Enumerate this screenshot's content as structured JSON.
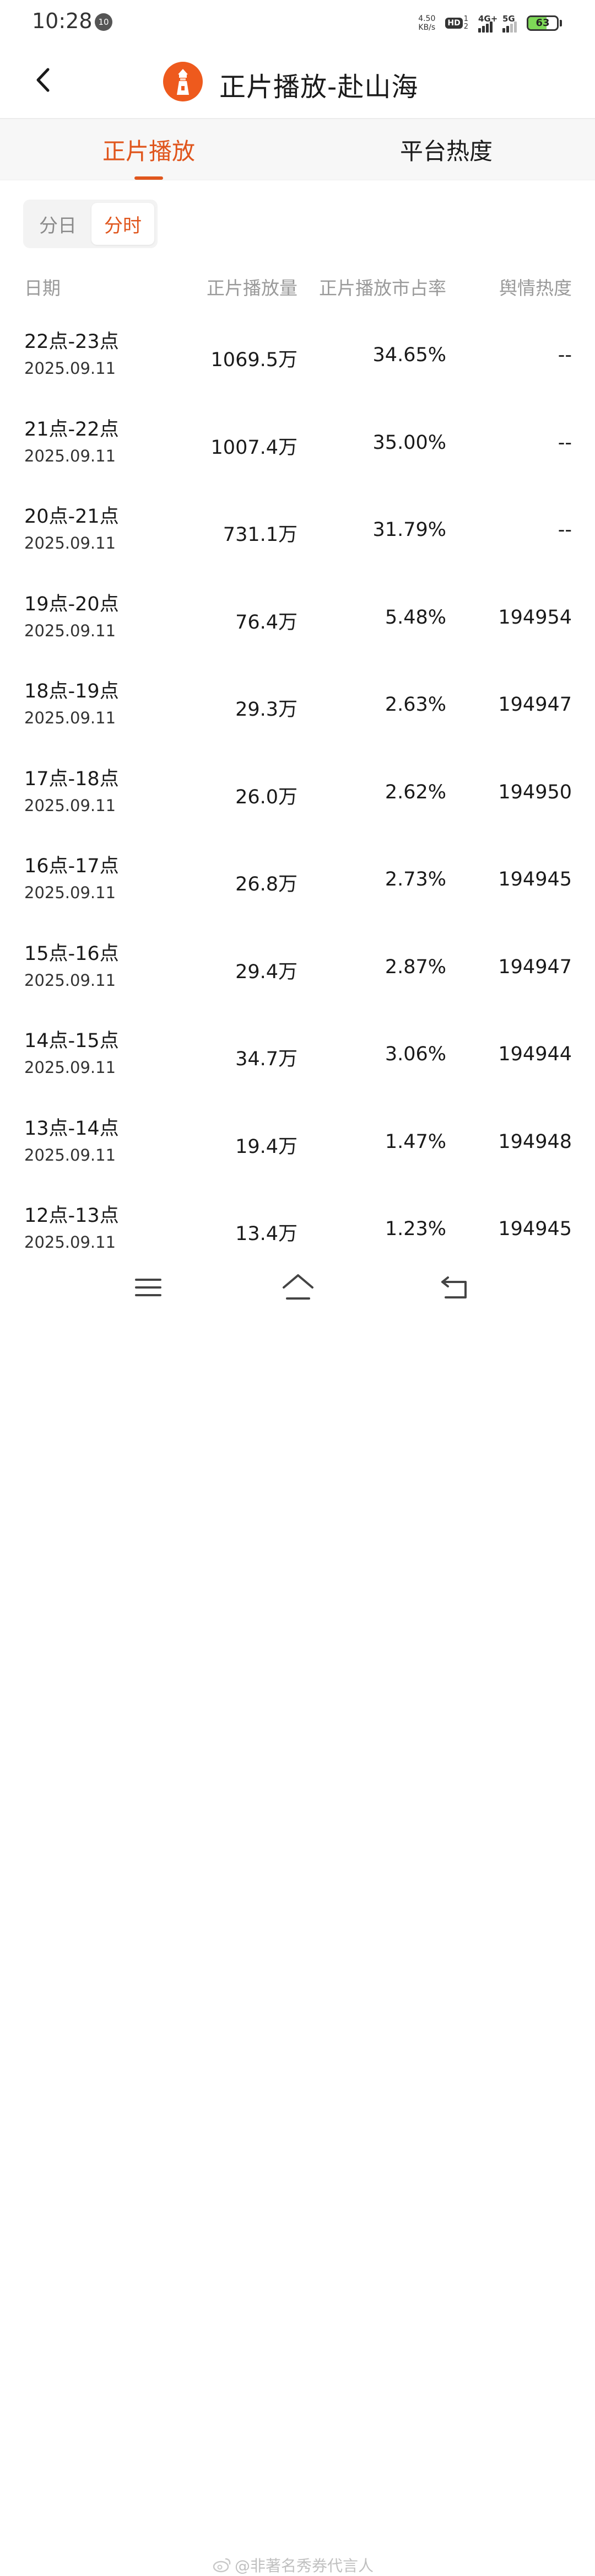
{
  "status_bar": {
    "time": "10:28",
    "notification_badge": "10",
    "net_speed_value": "4.50",
    "net_speed_unit": "KB/s",
    "hd_label": "HD",
    "hd_sim1": "1",
    "hd_sim2": "2",
    "signal1_label": "4G+",
    "signal2_label": "5G",
    "battery_level": "63",
    "battery_fraction": 0.63
  },
  "header": {
    "title": "正片播放-赴山海",
    "back_icon": "chevron-left-icon",
    "logo_icon": "lighthouse-logo-icon",
    "accent_color": "#e0561d"
  },
  "tabs": [
    {
      "label": "正片播放",
      "active": true
    },
    {
      "label": "平台热度",
      "active": false
    }
  ],
  "segmented": {
    "day_label": "分日",
    "hour_label": "分时",
    "selected": "分时"
  },
  "table": {
    "headers": [
      "日期",
      "正片播放量",
      "正片播放市占率",
      "舆情热度"
    ],
    "rows": [
      {
        "hour": "22点-23点",
        "date": "2025.09.11",
        "plays": "1069.5万",
        "share": "34.65%",
        "heat": "--"
      },
      {
        "hour": "21点-22点",
        "date": "2025.09.11",
        "plays": "1007.4万",
        "share": "35.00%",
        "heat": "--"
      },
      {
        "hour": "20点-21点",
        "date": "2025.09.11",
        "plays": "731.1万",
        "share": "31.79%",
        "heat": "--"
      },
      {
        "hour": "19点-20点",
        "date": "2025.09.11",
        "plays": "76.4万",
        "share": "5.48%",
        "heat": "194954"
      },
      {
        "hour": "18点-19点",
        "date": "2025.09.11",
        "plays": "29.3万",
        "share": "2.63%",
        "heat": "194947"
      },
      {
        "hour": "17点-18点",
        "date": "2025.09.11",
        "plays": "26.0万",
        "share": "2.62%",
        "heat": "194950"
      },
      {
        "hour": "16点-17点",
        "date": "2025.09.11",
        "plays": "26.8万",
        "share": "2.73%",
        "heat": "194945"
      },
      {
        "hour": "15点-16点",
        "date": "2025.09.11",
        "plays": "29.4万",
        "share": "2.87%",
        "heat": "194947"
      },
      {
        "hour": "14点-15点",
        "date": "2025.09.11",
        "plays": "34.7万",
        "share": "3.06%",
        "heat": "194944"
      },
      {
        "hour": "13点-14点",
        "date": "2025.09.11",
        "plays": "19.4万",
        "share": "1.47%",
        "heat": "194948"
      },
      {
        "hour": "12点-13点",
        "date": "2025.09.11",
        "plays": "13.4万",
        "share": "1.23%",
        "heat": "194945"
      }
    ]
  },
  "navbar": {
    "menu_icon": "menu-icon",
    "home_icon": "home-icon",
    "back_icon": "back-arrow-icon"
  },
  "watermark": {
    "text": "@非著名秀券代言人",
    "icon": "weibo-icon"
  }
}
